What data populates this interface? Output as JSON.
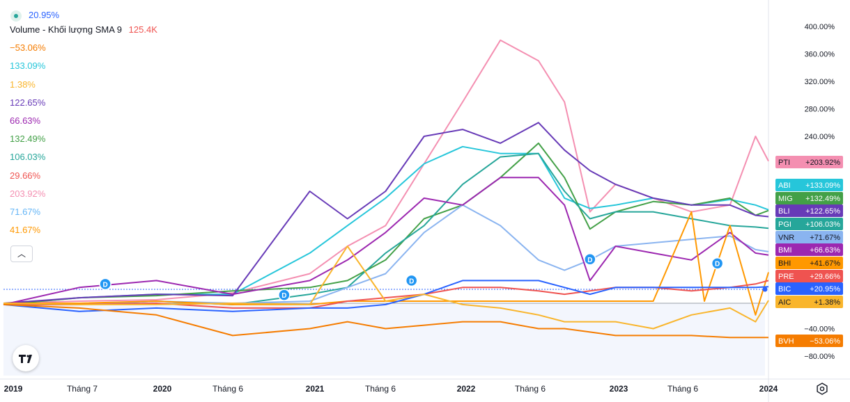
{
  "legend": {
    "main_value": "20.95%",
    "volume_label": "Volume - Khối lượng SMA 9",
    "volume_value": "125.4K",
    "values": [
      {
        "text": "−53.06%",
        "color": "#f57c00"
      },
      {
        "text": "133.09%",
        "color": "#26c6da"
      },
      {
        "text": "1.38%",
        "color": "#f9b52c"
      },
      {
        "text": "122.65%",
        "color": "#673ab7"
      },
      {
        "text": "66.63%",
        "color": "#9c27b0"
      },
      {
        "text": "132.49%",
        "color": "#43a047"
      },
      {
        "text": "106.03%",
        "color": "#26a69a"
      },
      {
        "text": "29.66%",
        "color": "#ef5350"
      },
      {
        "text": "203.92%",
        "color": "#f48fb1"
      },
      {
        "text": "71.67%",
        "color": "#64b5f6"
      },
      {
        "text": "41.67%",
        "color": "#ff9800"
      }
    ]
  },
  "chart_data": {
    "type": "line",
    "y_scale": "percent change",
    "ylim": [
      -100,
      420
    ],
    "y_ticks": [
      "400.00%",
      "360.00%",
      "320.00%",
      "280.00%",
      "240.00%",
      "−40.00%",
      "−80.00%"
    ],
    "x_ticks": [
      "2019",
      "Tháng 7",
      "2020",
      "Tháng 6",
      "2021",
      "Tháng 6",
      "2022",
      "Tháng 6",
      "2023",
      "Tháng 6",
      "2024"
    ],
    "x_range": [
      "2019-01",
      "2024-01"
    ],
    "series": [
      {
        "name": "PTI",
        "color": "#f48fb1",
        "last_label": "+203.92%",
        "points": [
          [
            "2019-01",
            -3
          ],
          [
            "2019-07",
            0
          ],
          [
            "2020-01",
            2
          ],
          [
            "2020-07",
            12
          ],
          [
            "2021-01",
            40
          ],
          [
            "2021-04",
            80
          ],
          [
            "2021-07",
            110
          ],
          [
            "2021-10",
            200
          ],
          [
            "2022-01",
            290
          ],
          [
            "2022-04",
            380
          ],
          [
            "2022-07",
            350
          ],
          [
            "2022-09",
            290
          ],
          [
            "2022-11",
            130
          ],
          [
            "2023-01",
            170
          ],
          [
            "2023-04",
            150
          ],
          [
            "2023-07",
            130
          ],
          [
            "2023-10",
            140
          ],
          [
            "2023-12",
            240
          ],
          [
            "2024-01",
            204
          ]
        ]
      },
      {
        "name": "ABI",
        "color": "#26c6da",
        "last_label": "+133.09%",
        "points": [
          [
            "2019-01",
            -5
          ],
          [
            "2019-07",
            5
          ],
          [
            "2020-01",
            10
          ],
          [
            "2020-07",
            10
          ],
          [
            "2021-01",
            70
          ],
          [
            "2021-04",
            110
          ],
          [
            "2021-07",
            150
          ],
          [
            "2021-10",
            200
          ],
          [
            "2022-01",
            225
          ],
          [
            "2022-04",
            215
          ],
          [
            "2022-07",
            215
          ],
          [
            "2022-09",
            150
          ],
          [
            "2022-11",
            135
          ],
          [
            "2023-01",
            140
          ],
          [
            "2023-04",
            150
          ],
          [
            "2023-07",
            140
          ],
          [
            "2023-10",
            148
          ],
          [
            "2023-12",
            140
          ],
          [
            "2024-01",
            133
          ]
        ]
      },
      {
        "name": "MIG",
        "color": "#43a047",
        "last_label": "+132.49%",
        "points": [
          [
            "2019-01",
            -5
          ],
          [
            "2019-07",
            5
          ],
          [
            "2020-01",
            8
          ],
          [
            "2020-07",
            15
          ],
          [
            "2021-01",
            20
          ],
          [
            "2021-04",
            30
          ],
          [
            "2021-07",
            60
          ],
          [
            "2021-10",
            120
          ],
          [
            "2022-01",
            140
          ],
          [
            "2022-04",
            180
          ],
          [
            "2022-07",
            230
          ],
          [
            "2022-09",
            180
          ],
          [
            "2022-11",
            105
          ],
          [
            "2023-01",
            130
          ],
          [
            "2023-04",
            145
          ],
          [
            "2023-07",
            140
          ],
          [
            "2023-10",
            150
          ],
          [
            "2023-12",
            125
          ],
          [
            "2024-01",
            132
          ]
        ]
      },
      {
        "name": "BLI",
        "color": "#673ab7",
        "last_label": "+122.65%",
        "points": [
          [
            "2019-01",
            -3
          ],
          [
            "2019-07",
            5
          ],
          [
            "2020-01",
            10
          ],
          [
            "2020-07",
            8
          ],
          [
            "2021-01",
            160
          ],
          [
            "2021-04",
            120
          ],
          [
            "2021-07",
            160
          ],
          [
            "2021-10",
            240
          ],
          [
            "2022-01",
            250
          ],
          [
            "2022-04",
            230
          ],
          [
            "2022-07",
            260
          ],
          [
            "2022-09",
            220
          ],
          [
            "2022-11",
            190
          ],
          [
            "2023-01",
            170
          ],
          [
            "2023-04",
            150
          ],
          [
            "2023-07",
            140
          ],
          [
            "2023-10",
            140
          ],
          [
            "2023-12",
            125
          ],
          [
            "2024-01",
            123
          ]
        ]
      },
      {
        "name": "PGI",
        "color": "#26a69a",
        "last_label": "+106.03%",
        "points": [
          [
            "2019-01",
            -5
          ],
          [
            "2019-07",
            -5
          ],
          [
            "2020-01",
            0
          ],
          [
            "2020-07",
            -5
          ],
          [
            "2021-01",
            10
          ],
          [
            "2021-04",
            20
          ],
          [
            "2021-07",
            70
          ],
          [
            "2021-10",
            110
          ],
          [
            "2022-01",
            170
          ],
          [
            "2022-04",
            210
          ],
          [
            "2022-07",
            215
          ],
          [
            "2022-09",
            160
          ],
          [
            "2022-11",
            120
          ],
          [
            "2023-01",
            130
          ],
          [
            "2023-04",
            130
          ],
          [
            "2023-07",
            120
          ],
          [
            "2023-10",
            110
          ],
          [
            "2023-12",
            108
          ],
          [
            "2024-01",
            106
          ]
        ]
      },
      {
        "name": "VNR",
        "color": "#8ab4f0",
        "last_label": "+71.67%",
        "points": [
          [
            "2019-01",
            -5
          ],
          [
            "2019-07",
            -5
          ],
          [
            "2020-01",
            0
          ],
          [
            "2020-07",
            -3
          ],
          [
            "2021-01",
            0
          ],
          [
            "2021-04",
            20
          ],
          [
            "2021-07",
            40
          ],
          [
            "2021-10",
            100
          ],
          [
            "2022-01",
            140
          ],
          [
            "2022-04",
            110
          ],
          [
            "2022-07",
            60
          ],
          [
            "2022-09",
            45
          ],
          [
            "2022-11",
            60
          ],
          [
            "2023-01",
            80
          ],
          [
            "2023-04",
            85
          ],
          [
            "2023-07",
            90
          ],
          [
            "2023-10",
            95
          ],
          [
            "2023-12",
            75
          ],
          [
            "2024-01",
            72
          ]
        ]
      },
      {
        "name": "BMI",
        "color": "#9c27b0",
        "last_label": "+66.63%",
        "points": [
          [
            "2019-01",
            -5
          ],
          [
            "2019-07",
            20
          ],
          [
            "2020-01",
            30
          ],
          [
            "2020-07",
            10
          ],
          [
            "2021-01",
            30
          ],
          [
            "2021-04",
            60
          ],
          [
            "2021-07",
            100
          ],
          [
            "2021-10",
            150
          ],
          [
            "2022-01",
            140
          ],
          [
            "2022-04",
            180
          ],
          [
            "2022-07",
            180
          ],
          [
            "2022-09",
            140
          ],
          [
            "2022-11",
            30
          ],
          [
            "2023-01",
            80
          ],
          [
            "2023-04",
            70
          ],
          [
            "2023-07",
            60
          ],
          [
            "2023-10",
            100
          ],
          [
            "2023-12",
            70
          ],
          [
            "2024-01",
            67
          ]
        ]
      },
      {
        "name": "BHI",
        "color": "#ff9800",
        "last_label": "+41.67%",
        "points": [
          [
            "2019-01",
            -3
          ],
          [
            "2019-07",
            -3
          ],
          [
            "2020-01",
            0
          ],
          [
            "2020-07",
            -5
          ],
          [
            "2021-01",
            -5
          ],
          [
            "2021-04",
            0
          ],
          [
            "2021-07",
            0
          ],
          [
            "2021-10",
            0
          ],
          [
            "2022-01",
            0
          ],
          [
            "2022-04",
            0
          ],
          [
            "2022-07",
            0
          ],
          [
            "2022-09",
            0
          ],
          [
            "2022-11",
            0
          ],
          [
            "2023-01",
            0
          ],
          [
            "2023-04",
            0
          ],
          [
            "2023-07",
            130
          ],
          [
            "2023-08",
            0
          ],
          [
            "2023-10",
            110
          ],
          [
            "2023-12",
            -20
          ],
          [
            "2024-01",
            42
          ]
        ]
      },
      {
        "name": "PRE",
        "color": "#ef5350",
        "last_label": "+29.66%",
        "points": [
          [
            "2019-01",
            -5
          ],
          [
            "2019-07",
            -5
          ],
          [
            "2020-01",
            -3
          ],
          [
            "2020-07",
            -10
          ],
          [
            "2021-01",
            -10
          ],
          [
            "2021-04",
            0
          ],
          [
            "2021-07",
            5
          ],
          [
            "2021-10",
            10
          ],
          [
            "2022-01",
            20
          ],
          [
            "2022-04",
            20
          ],
          [
            "2022-07",
            15
          ],
          [
            "2022-09",
            10
          ],
          [
            "2022-11",
            15
          ],
          [
            "2023-01",
            20
          ],
          [
            "2023-04",
            20
          ],
          [
            "2023-07",
            15
          ],
          [
            "2023-10",
            20
          ],
          [
            "2023-12",
            25
          ],
          [
            "2024-01",
            30
          ]
        ]
      },
      {
        "name": "BIC",
        "color": "#2962ff",
        "last_label": "+20.95%",
        "points": [
          [
            "2019-01",
            -5
          ],
          [
            "2019-07",
            -15
          ],
          [
            "2020-01",
            -10
          ],
          [
            "2020-07",
            -15
          ],
          [
            "2021-01",
            -10
          ],
          [
            "2021-04",
            -10
          ],
          [
            "2021-07",
            -5
          ],
          [
            "2021-10",
            10
          ],
          [
            "2022-01",
            30
          ],
          [
            "2022-04",
            30
          ],
          [
            "2022-07",
            30
          ],
          [
            "2022-09",
            20
          ],
          [
            "2022-11",
            10
          ],
          [
            "2023-01",
            20
          ],
          [
            "2023-04",
            20
          ],
          [
            "2023-07",
            20
          ],
          [
            "2023-10",
            20
          ],
          [
            "2023-12",
            20
          ],
          [
            "2024-01",
            21
          ]
        ]
      },
      {
        "name": "AIC",
        "color": "#f9b52c",
        "last_label": "+1.38%",
        "points": [
          [
            "2019-01",
            -3
          ],
          [
            "2019-07",
            -5
          ],
          [
            "2020-01",
            -5
          ],
          [
            "2020-07",
            -3
          ],
          [
            "2021-01",
            -5
          ],
          [
            "2021-04",
            80
          ],
          [
            "2021-07",
            0
          ],
          [
            "2021-10",
            10
          ],
          [
            "2022-01",
            -5
          ],
          [
            "2022-04",
            -10
          ],
          [
            "2022-07",
            -20
          ],
          [
            "2022-09",
            -30
          ],
          [
            "2022-11",
            -30
          ],
          [
            "2023-01",
            -30
          ],
          [
            "2023-04",
            -40
          ],
          [
            "2023-07",
            -20
          ],
          [
            "2023-10",
            -10
          ],
          [
            "2023-12",
            -30
          ],
          [
            "2024-01",
            1
          ]
        ]
      },
      {
        "name": "BVH",
        "color": "#f57c00",
        "last_label": "−53.06%",
        "points": [
          [
            "2019-01",
            -5
          ],
          [
            "2019-07",
            -10
          ],
          [
            "2020-01",
            -20
          ],
          [
            "2020-07",
            -50
          ],
          [
            "2021-01",
            -40
          ],
          [
            "2021-04",
            -30
          ],
          [
            "2021-07",
            -40
          ],
          [
            "2021-10",
            -35
          ],
          [
            "2022-01",
            -30
          ],
          [
            "2022-04",
            -30
          ],
          [
            "2022-07",
            -40
          ],
          [
            "2022-09",
            -40
          ],
          [
            "2022-11",
            -45
          ],
          [
            "2023-01",
            -50
          ],
          [
            "2023-04",
            -50
          ],
          [
            "2023-07",
            -50
          ],
          [
            "2023-10",
            -53
          ],
          [
            "2023-12",
            -53
          ],
          [
            "2024-01",
            -53
          ]
        ]
      }
    ],
    "dividend_markers": [
      {
        "label": "D",
        "x": "2019-09",
        "y": 25
      },
      {
        "label": "D",
        "x": "2020-11",
        "y": 9
      },
      {
        "label": "D",
        "x": "2021-09",
        "y": 30
      },
      {
        "label": "D",
        "x": "2022-11",
        "y": 61
      },
      {
        "label": "D",
        "x": "2023-09",
        "y": 55
      }
    ],
    "volume_range_k": [
      0,
      800
    ],
    "volume": []
  }
}
